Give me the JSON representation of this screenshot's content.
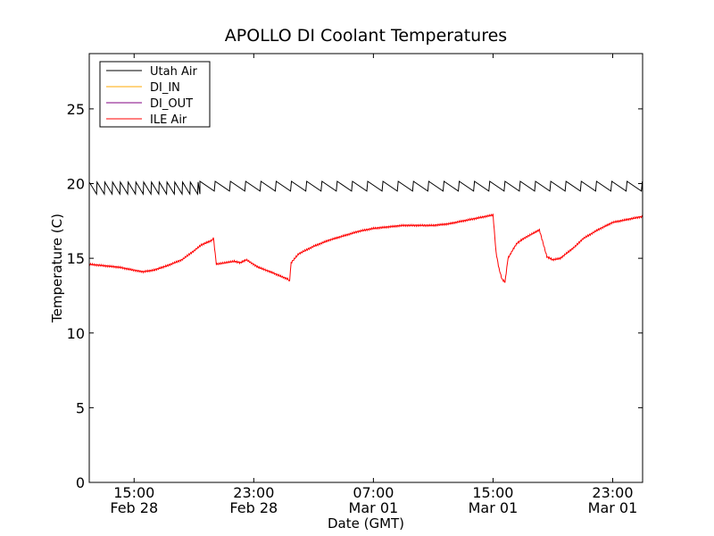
{
  "chart_data": {
    "type": "line",
    "title": "APOLLO DI Coolant Temperatures",
    "xlabel": "Date (GMT)",
    "ylabel": "Temperature (C)",
    "ylim": [
      0,
      28.7
    ],
    "xlim_hours": [
      0,
      37
    ],
    "x_unit": "hours since Feb 28 12:00 GMT",
    "yticks": [
      {
        "value": 0,
        "label": "0"
      },
      {
        "value": 5,
        "label": "5"
      },
      {
        "value": 10,
        "label": "10"
      },
      {
        "value": 15,
        "label": "15"
      },
      {
        "value": 20,
        "label": "20"
      },
      {
        "value": 25,
        "label": "25"
      }
    ],
    "xticks": [
      {
        "hour": 3,
        "time": "15:00",
        "date": "Feb 28"
      },
      {
        "hour": 11,
        "time": "23:00",
        "date": "Feb 28"
      },
      {
        "hour": 19,
        "time": "07:00",
        "date": "Mar 01"
      },
      {
        "hour": 27,
        "time": "15:00",
        "date": "Mar 01"
      },
      {
        "hour": 35,
        "time": "23:00",
        "date": "Mar 01"
      }
    ],
    "legend_position": "top-left",
    "series": [
      {
        "name": "Utah Air",
        "color": "#000000",
        "style": "sawtooth",
        "sawtooth_segments": [
          {
            "start_hour": 0.0,
            "end_hour": 7.4,
            "period_hours": 0.52,
            "high": 20.1,
            "low": 19.3
          },
          {
            "start_hour": 7.4,
            "end_hour": 37.0,
            "period_hours": 1.02,
            "high": 20.15,
            "low": 19.5
          }
        ]
      },
      {
        "name": "DI_IN",
        "color": "#ffaa00",
        "x": [],
        "y": []
      },
      {
        "name": "DI_OUT",
        "color": "#800080",
        "x": [],
        "y": []
      },
      {
        "name": "ILE Air",
        "color": "#ff0000",
        "x": [
          0,
          1,
          2,
          3,
          3.6,
          4.3,
          5.2,
          6.2,
          7.0,
          7.5,
          8.2,
          8.3,
          8.5,
          9.1,
          9.7,
          10.1,
          10.5,
          11.3,
          12.1,
          12.8,
          13.3,
          13.4,
          13.5,
          14.0,
          15.0,
          16.0,
          17.0,
          18.0,
          19.0,
          20.0,
          21.0,
          22.0,
          23.0,
          24.0,
          25.0,
          26.0,
          27.0,
          27.2,
          27.4,
          27.6,
          27.8,
          28.0,
          28.4,
          28.6,
          29.0,
          30.1,
          30.6,
          31.0,
          31.5,
          32.0,
          32.5,
          33.0,
          34.0,
          35.0,
          36.0,
          37.0
        ],
        "y": [
          14.6,
          14.5,
          14.4,
          14.2,
          14.1,
          14.2,
          14.5,
          14.9,
          15.5,
          15.9,
          16.2,
          16.4,
          14.6,
          14.7,
          14.8,
          14.7,
          14.9,
          14.4,
          14.1,
          13.8,
          13.6,
          13.5,
          14.7,
          15.3,
          15.8,
          16.2,
          16.5,
          16.8,
          17.0,
          17.1,
          17.2,
          17.2,
          17.2,
          17.3,
          17.5,
          17.7,
          17.9,
          15.4,
          14.3,
          13.6,
          13.4,
          15.0,
          15.7,
          16.0,
          16.3,
          16.9,
          15.1,
          14.9,
          15.0,
          15.4,
          15.8,
          16.3,
          16.9,
          17.4,
          17.6,
          17.8
        ]
      }
    ]
  }
}
